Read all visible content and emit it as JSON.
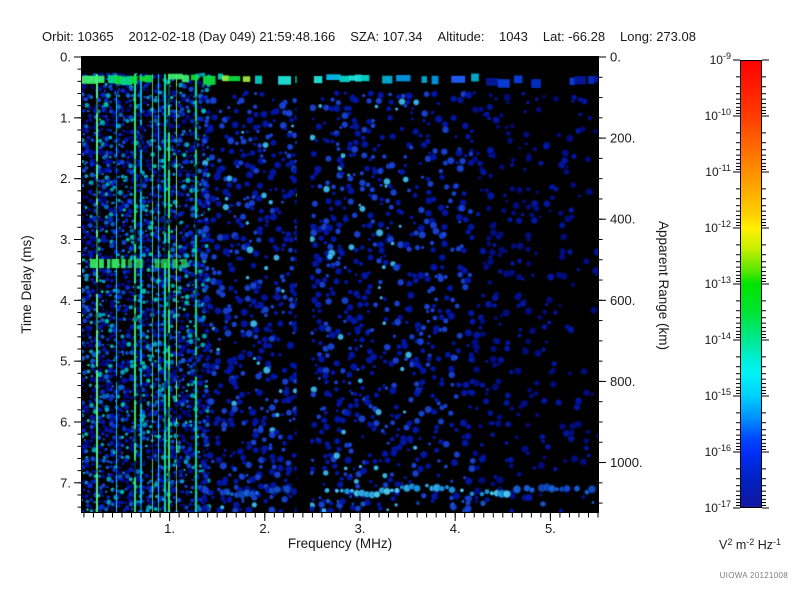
{
  "header": {
    "segments": [
      "Orbit: 10365",
      "2012-02-18 (Day 049) 21:59:48.166",
      "SZA: 107.34",
      "Altitude:    1043",
      "Lat: -66.28",
      "Long: 273.08"
    ]
  },
  "axes": {
    "x": {
      "label": "Frequency (MHz)",
      "min": 0.08,
      "max": 5.5,
      "major_ticks": [
        1,
        2,
        3,
        4,
        5
      ],
      "major_labels": [
        "1.",
        "2.",
        "3.",
        "4.",
        "5."
      ],
      "minor_step": 0.1
    },
    "y_left": {
      "label": "Time Delay (ms)",
      "min": 0,
      "max": 7.48,
      "major_ticks": [
        0,
        1,
        2,
        3,
        4,
        5,
        6,
        7
      ],
      "major_labels": [
        "0.",
        "1.",
        "2.",
        "3.",
        "4.",
        "5.",
        "6.",
        "7."
      ],
      "minor_step": 0.2
    },
    "y_right": {
      "label": "Apparent Range (km)",
      "major_ticks": [
        0,
        200,
        400,
        600,
        800,
        1000
      ],
      "major_labels": [
        "0.",
        "200.",
        "400.",
        "600.",
        "800.",
        "1000."
      ],
      "minor_step": 50,
      "km_per_ms": 150,
      "max_km": 1122
    }
  },
  "colorbar": {
    "exponents": [
      "-9",
      "-10",
      "-11",
      "-12",
      "-13",
      "-14",
      "-15",
      "-16",
      "-17"
    ],
    "base": "10",
    "units_parts": [
      [
        "V",
        "2"
      ],
      [
        "m",
        "-2"
      ],
      [
        "Hz",
        "-1"
      ]
    ],
    "gradient": [
      [
        0.0,
        "#ff0000"
      ],
      [
        0.125,
        "#ff3c00"
      ],
      [
        0.25,
        "#ff9000"
      ],
      [
        0.345,
        "#ffd000"
      ],
      [
        0.375,
        "#fff000"
      ],
      [
        0.42,
        "#c8f000"
      ],
      [
        0.47,
        "#58e800"
      ],
      [
        0.5,
        "#00e400"
      ],
      [
        0.56,
        "#00e430"
      ],
      [
        0.625,
        "#00e890"
      ],
      [
        0.67,
        "#00f0d8"
      ],
      [
        0.7,
        "#00f4f4"
      ],
      [
        0.75,
        "#00d0ff"
      ],
      [
        0.8,
        "#0090ff"
      ],
      [
        0.845,
        "#0048ff"
      ],
      [
        0.875,
        "#0030f8"
      ],
      [
        0.94,
        "#0020c0"
      ],
      [
        1.0,
        "#1018a0"
      ]
    ]
  },
  "watermark": "UIOWA 20121008",
  "chart_data": {
    "type": "heatmap",
    "title": "",
    "xlabel": "Frequency (MHz)",
    "ylabel_left": "Time Delay (ms)",
    "ylabel_right": "Apparent Range (km)",
    "x_range_mhz": [
      0.08,
      5.5
    ],
    "y_range_ms": [
      0,
      7.48
    ],
    "colorbar_range_v2m2hz": [
      "1e-17",
      "1e-9"
    ],
    "features": [
      {
        "name": "blackout-top",
        "time_ms": [
          0,
          0.26
        ],
        "freq_mhz": [
          0.08,
          5.5
        ],
        "appearance": "solid black band"
      },
      {
        "name": "direct-signal-band",
        "time_ms": [
          0.27,
          0.47
        ],
        "freq_mhz": [
          0.08,
          5.5
        ],
        "appearance": "bright dashed band: green at low freq, cyan mid, dark blue at high freq"
      },
      {
        "name": "low-freq-noise",
        "freq_mhz": [
          0.08,
          1.56
        ],
        "time_ms": [
          0.27,
          7.48
        ],
        "appearance": "dense bright green/cyan vertical stripes over blue noise"
      },
      {
        "name": "green-interference-line",
        "time_ms": [
          3.32,
          3.47
        ],
        "freq_mhz": [
          0.08,
          1.2
        ],
        "appearance": "bright green horizontal streak"
      },
      {
        "name": "frequency-gap",
        "freq_mhz": [
          2.335,
          2.475
        ],
        "time_ms": [
          0,
          7.48
        ],
        "appearance": "black vertical gap"
      },
      {
        "name": "diffuse-echo",
        "freq_mhz": [
          1.38,
          5.5
        ],
        "time_ms": [
          0.62,
          7.48
        ],
        "appearance": "blue speckle, density decreasing with frequency"
      },
      {
        "name": "surface-echo-band",
        "time_ms": [
          6.95,
          7.35
        ],
        "freq_mhz": [
          1.55,
          5.5
        ],
        "appearance": "wavy cyan/light-blue horizontal band"
      }
    ],
    "render": {
      "seed": 1337,
      "stripe_palette": [
        "#00e050",
        "#30f068",
        "#00e890",
        "#58f080",
        "#00d8b0",
        "#00c0e8",
        "#80f060",
        "#00f0a0",
        "#20d4ff"
      ],
      "noise_palette": [
        "#0008a0",
        "#0018c8",
        "#0030e8",
        "#1050f0",
        "#0b70e8",
        "#00b8d8",
        "#00d8c8"
      ],
      "blob_core_bright": "#40c8ff",
      "blob_core_mid": "#1848e8",
      "blob_core_dim": "#0018b8",
      "blob_core_dimmest": "#000e90",
      "band_colors_low": [
        "#10e040",
        "#40f070",
        "#00e088",
        "#a0f040",
        "#00d0c0"
      ],
      "band_colors_cyan": [
        "#00d8cc",
        "#20e8e0",
        "#00c0f0"
      ],
      "band_colors_bluecyan": [
        "#0098e8",
        "#2060ff",
        "#00b0d8"
      ],
      "band_colors_dark": [
        "#0030cc",
        "#0a40e0",
        "#001a9e"
      ],
      "bottom_band_bright": [
        "#50d8ff",
        "#30b8f8",
        "#18a0f0"
      ],
      "bottom_band_dim": [
        "#1868e8",
        "#1050d0"
      ],
      "green_line_color": "#30e858",
      "gap_mhz": [
        2.335,
        2.475
      ],
      "top_black_ms": 0.26,
      "band_ms": [
        0.27,
        0.47
      ],
      "green_line_ms": [
        3.32,
        3.47
      ],
      "bottom_band_ms": [
        6.95,
        7.35
      ],
      "stripe_region_max_mhz": 1.56,
      "stripe_dense_max_mhz": 1.33,
      "mid_density": 0.5,
      "right_min_density": 0.1
    }
  }
}
